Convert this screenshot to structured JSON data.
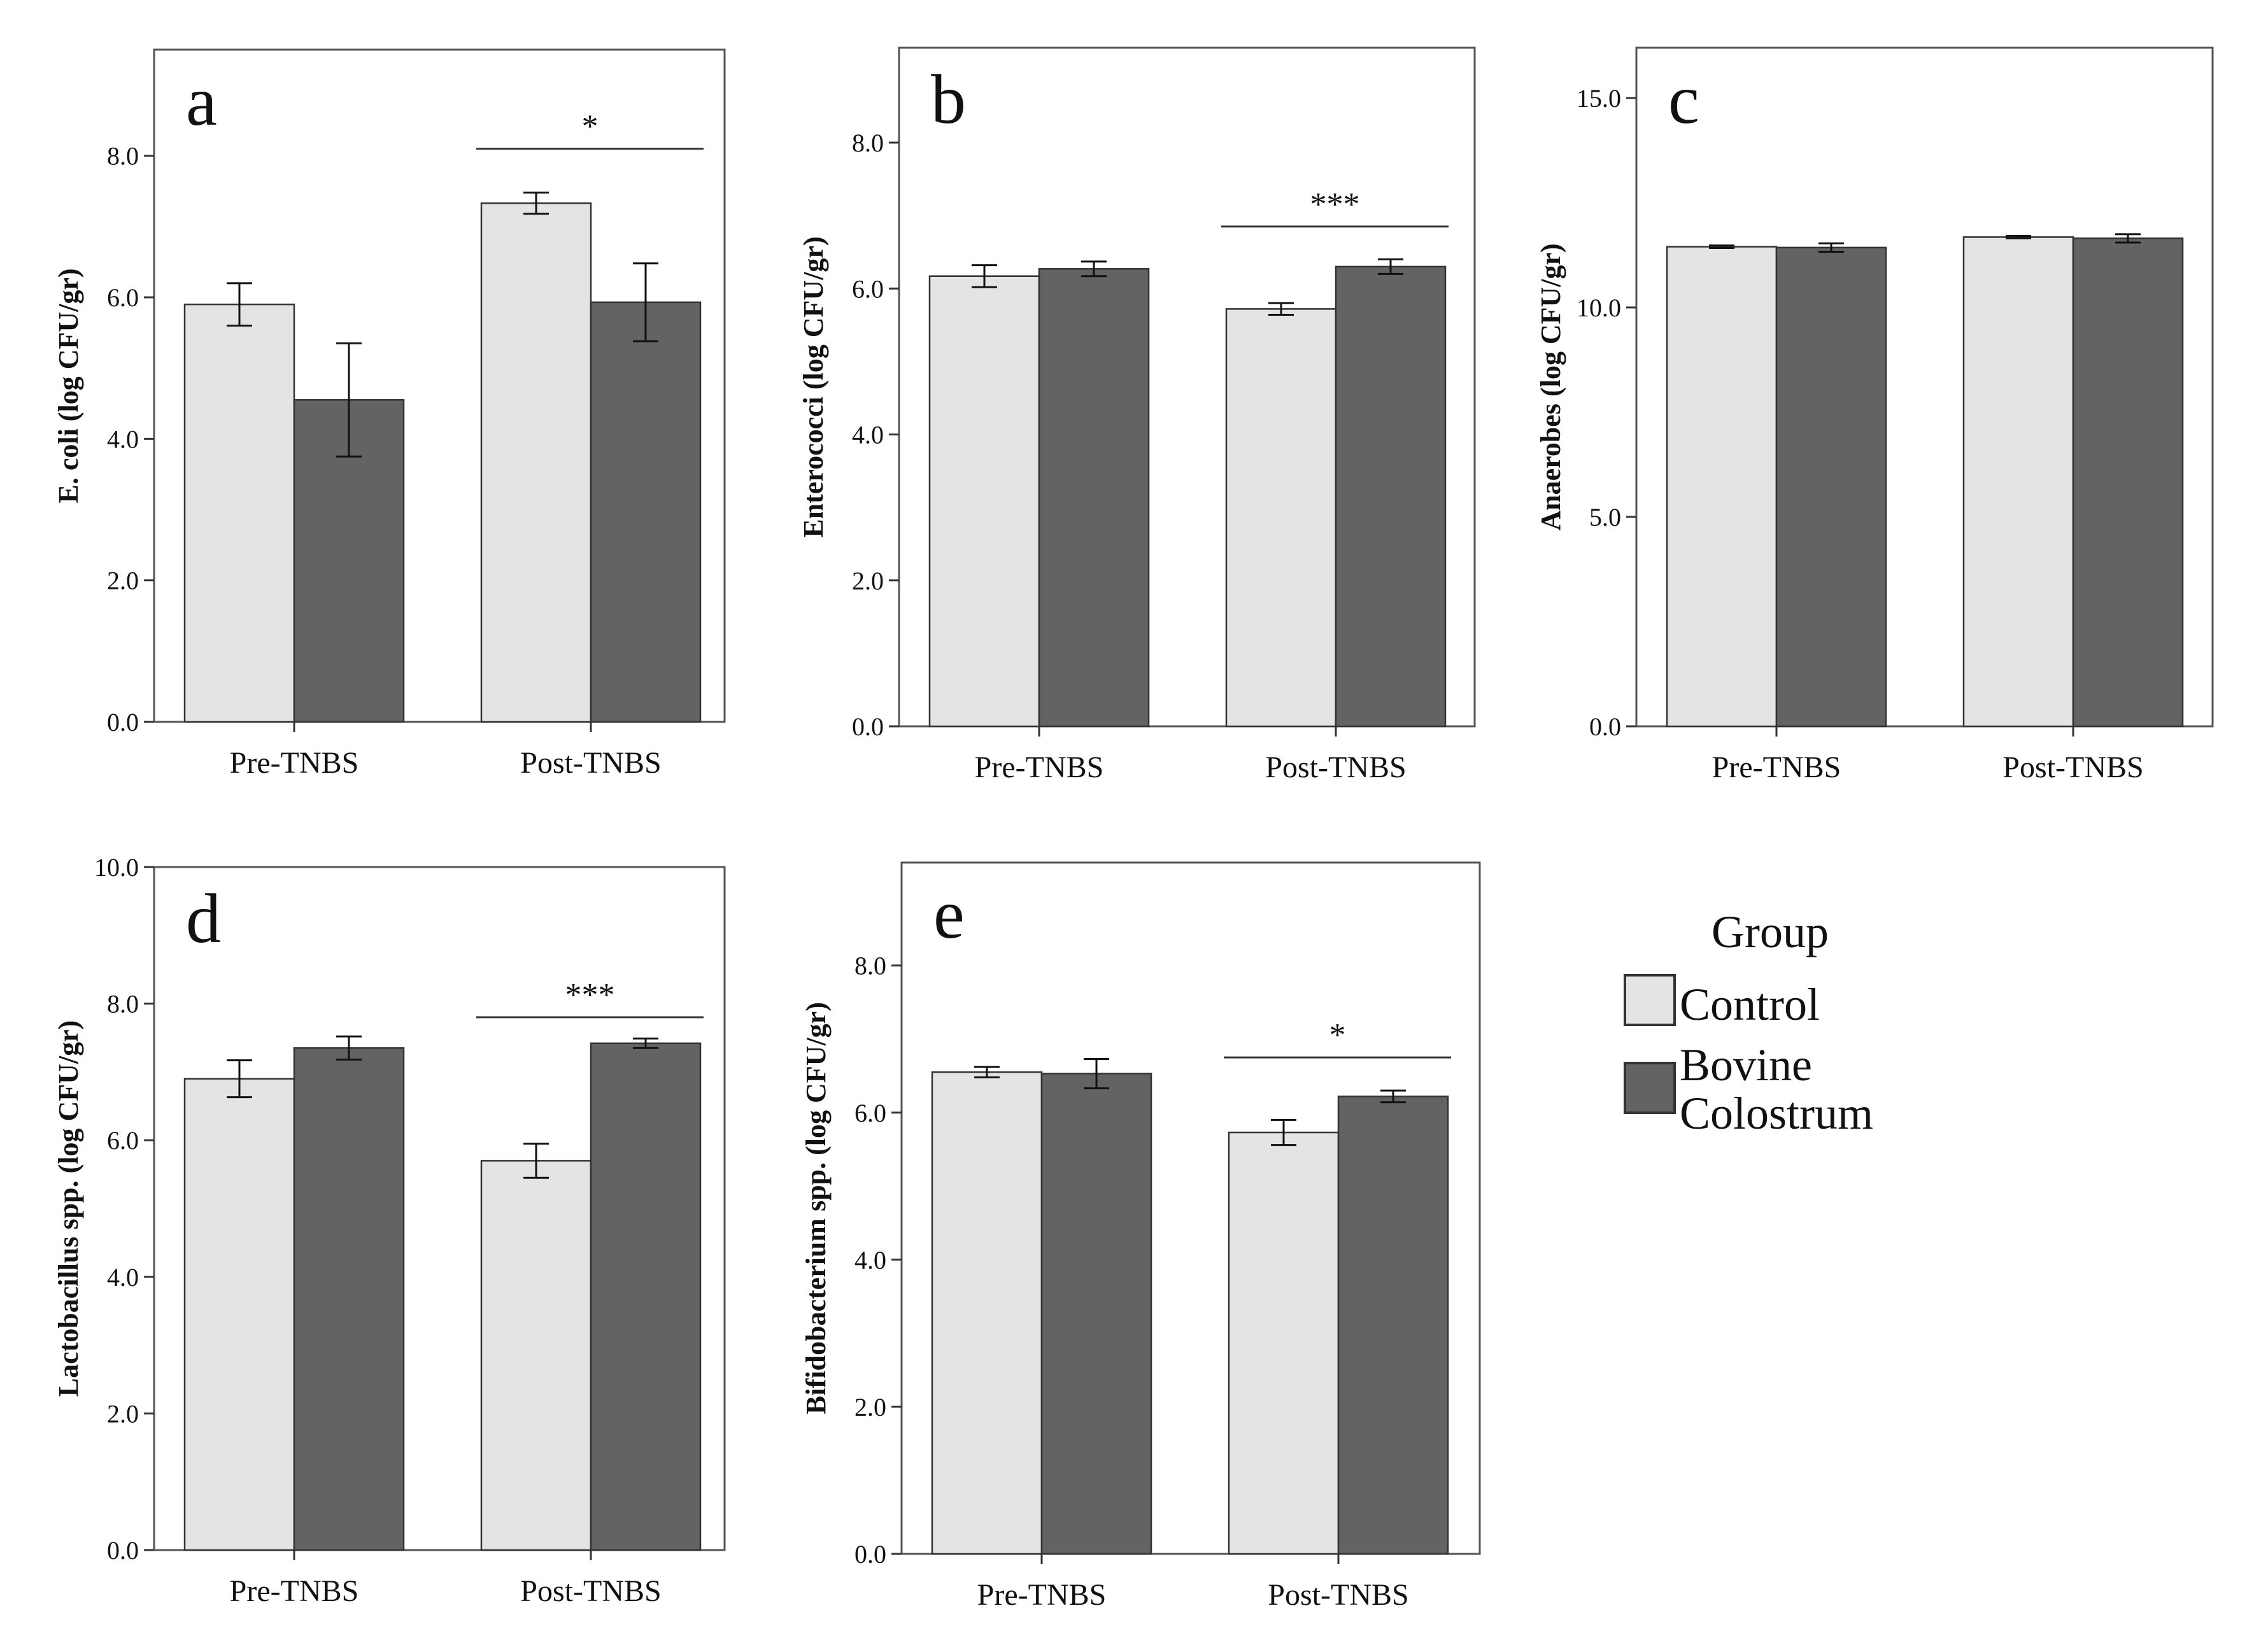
{
  "legend": {
    "title": "Group",
    "entries": [
      {
        "label": "Control",
        "color": "#e4e4e4"
      },
      {
        "label": "Bovine Colostrum",
        "label_lines": [
          "Bovine",
          "Colostrum"
        ],
        "color": "#636363"
      }
    ],
    "placement": "right, beside panel e"
  },
  "colors": {
    "control": "#e4e4e4",
    "bovine_colostrum": "#636363",
    "frame": "#555555"
  },
  "chart_data": [
    {
      "panel": "a",
      "type": "bar",
      "ylabel": "E. coli (log CFU/gr)",
      "categories": [
        "Pre-TNBS",
        "Post-TNBS"
      ],
      "series": [
        {
          "name": "Control",
          "values": [
            5.9,
            7.33
          ],
          "error": [
            0.3,
            0.15
          ]
        },
        {
          "name": "Bovine Colostrum",
          "values": [
            4.55,
            5.93
          ],
          "error": [
            0.8,
            0.55
          ]
        }
      ],
      "ylim": [
        0,
        9.5
      ],
      "yticks": [
        0,
        2,
        4,
        6,
        8
      ],
      "ytick_labels": [
        "0.0",
        "2.0",
        "4.0",
        "6.0",
        "8.0"
      ],
      "significance": [
        {
          "category": "Post-TNBS",
          "label": "*",
          "line_y": 8.1
        }
      ],
      "grid": false
    },
    {
      "panel": "b",
      "type": "bar",
      "ylabel": "Enterococci (log CFU/gr)",
      "categories": [
        "Pre-TNBS",
        "Post-TNBS"
      ],
      "series": [
        {
          "name": "Control",
          "values": [
            6.17,
            5.72
          ],
          "error": [
            0.15,
            0.08
          ]
        },
        {
          "name": "Bovine Colostrum",
          "values": [
            6.27,
            6.3
          ],
          "error": [
            0.1,
            0.1
          ]
        }
      ],
      "ylim": [
        0,
        9.3
      ],
      "yticks": [
        0,
        2,
        4,
        6,
        8
      ],
      "ytick_labels": [
        "0.0",
        "2.0",
        "4.0",
        "6.0",
        "8.0"
      ],
      "significance": [
        {
          "category": "Post-TNBS",
          "label": "***",
          "line_y": 6.85
        }
      ],
      "grid": false
    },
    {
      "panel": "c",
      "type": "bar",
      "ylabel": "Anaerobes (log CFU/gr)",
      "categories": [
        "Pre-TNBS",
        "Post-TNBS"
      ],
      "series": [
        {
          "name": "Control",
          "values": [
            11.45,
            11.68
          ],
          "error": [
            0.03,
            0.03
          ]
        },
        {
          "name": "Bovine Colostrum",
          "values": [
            11.43,
            11.65
          ],
          "error": [
            0.1,
            0.1
          ]
        }
      ],
      "ylim": [
        0,
        16.2
      ],
      "yticks": [
        0,
        5,
        10,
        15
      ],
      "ytick_labels": [
        "0.0",
        "5.0",
        "10.0",
        "15.0"
      ],
      "significance": [],
      "grid": false
    },
    {
      "panel": "d",
      "type": "bar",
      "ylabel": "Lactobacillus spp. (log CFU/gr)",
      "categories": [
        "Pre-TNBS",
        "Post-TNBS"
      ],
      "series": [
        {
          "name": "Control",
          "values": [
            6.9,
            5.7
          ],
          "error": [
            0.27,
            0.25
          ]
        },
        {
          "name": "Bovine Colostrum",
          "values": [
            7.35,
            7.42
          ],
          "error": [
            0.17,
            0.07
          ]
        }
      ],
      "ylim": [
        0,
        10
      ],
      "yticks": [
        0,
        2,
        4,
        6,
        8,
        10
      ],
      "ytick_labels": [
        "0.0",
        "2.0",
        "4.0",
        "6.0",
        "8.0",
        "10.0"
      ],
      "significance": [
        {
          "category": "Post-TNBS",
          "label": "***",
          "line_y": 7.8
        }
      ],
      "grid": false
    },
    {
      "panel": "e",
      "type": "bar",
      "ylabel": "Bifidobacterium spp. (log CFU/gr)",
      "categories": [
        "Pre-TNBS",
        "Post-TNBS"
      ],
      "series": [
        {
          "name": "Control",
          "values": [
            6.55,
            5.73
          ],
          "error": [
            0.07,
            0.17
          ]
        },
        {
          "name": "Bovine Colostrum",
          "values": [
            6.53,
            6.22
          ],
          "error": [
            0.2,
            0.08
          ]
        }
      ],
      "ylim": [
        0,
        9.4
      ],
      "yticks": [
        0,
        2,
        4,
        6,
        8
      ],
      "ytick_labels": [
        "0.0",
        "2.0",
        "4.0",
        "6.0",
        "8.0"
      ],
      "significance": [
        {
          "category": "Post-TNBS",
          "label": "*",
          "line_y": 6.75
        }
      ],
      "grid": false
    }
  ]
}
